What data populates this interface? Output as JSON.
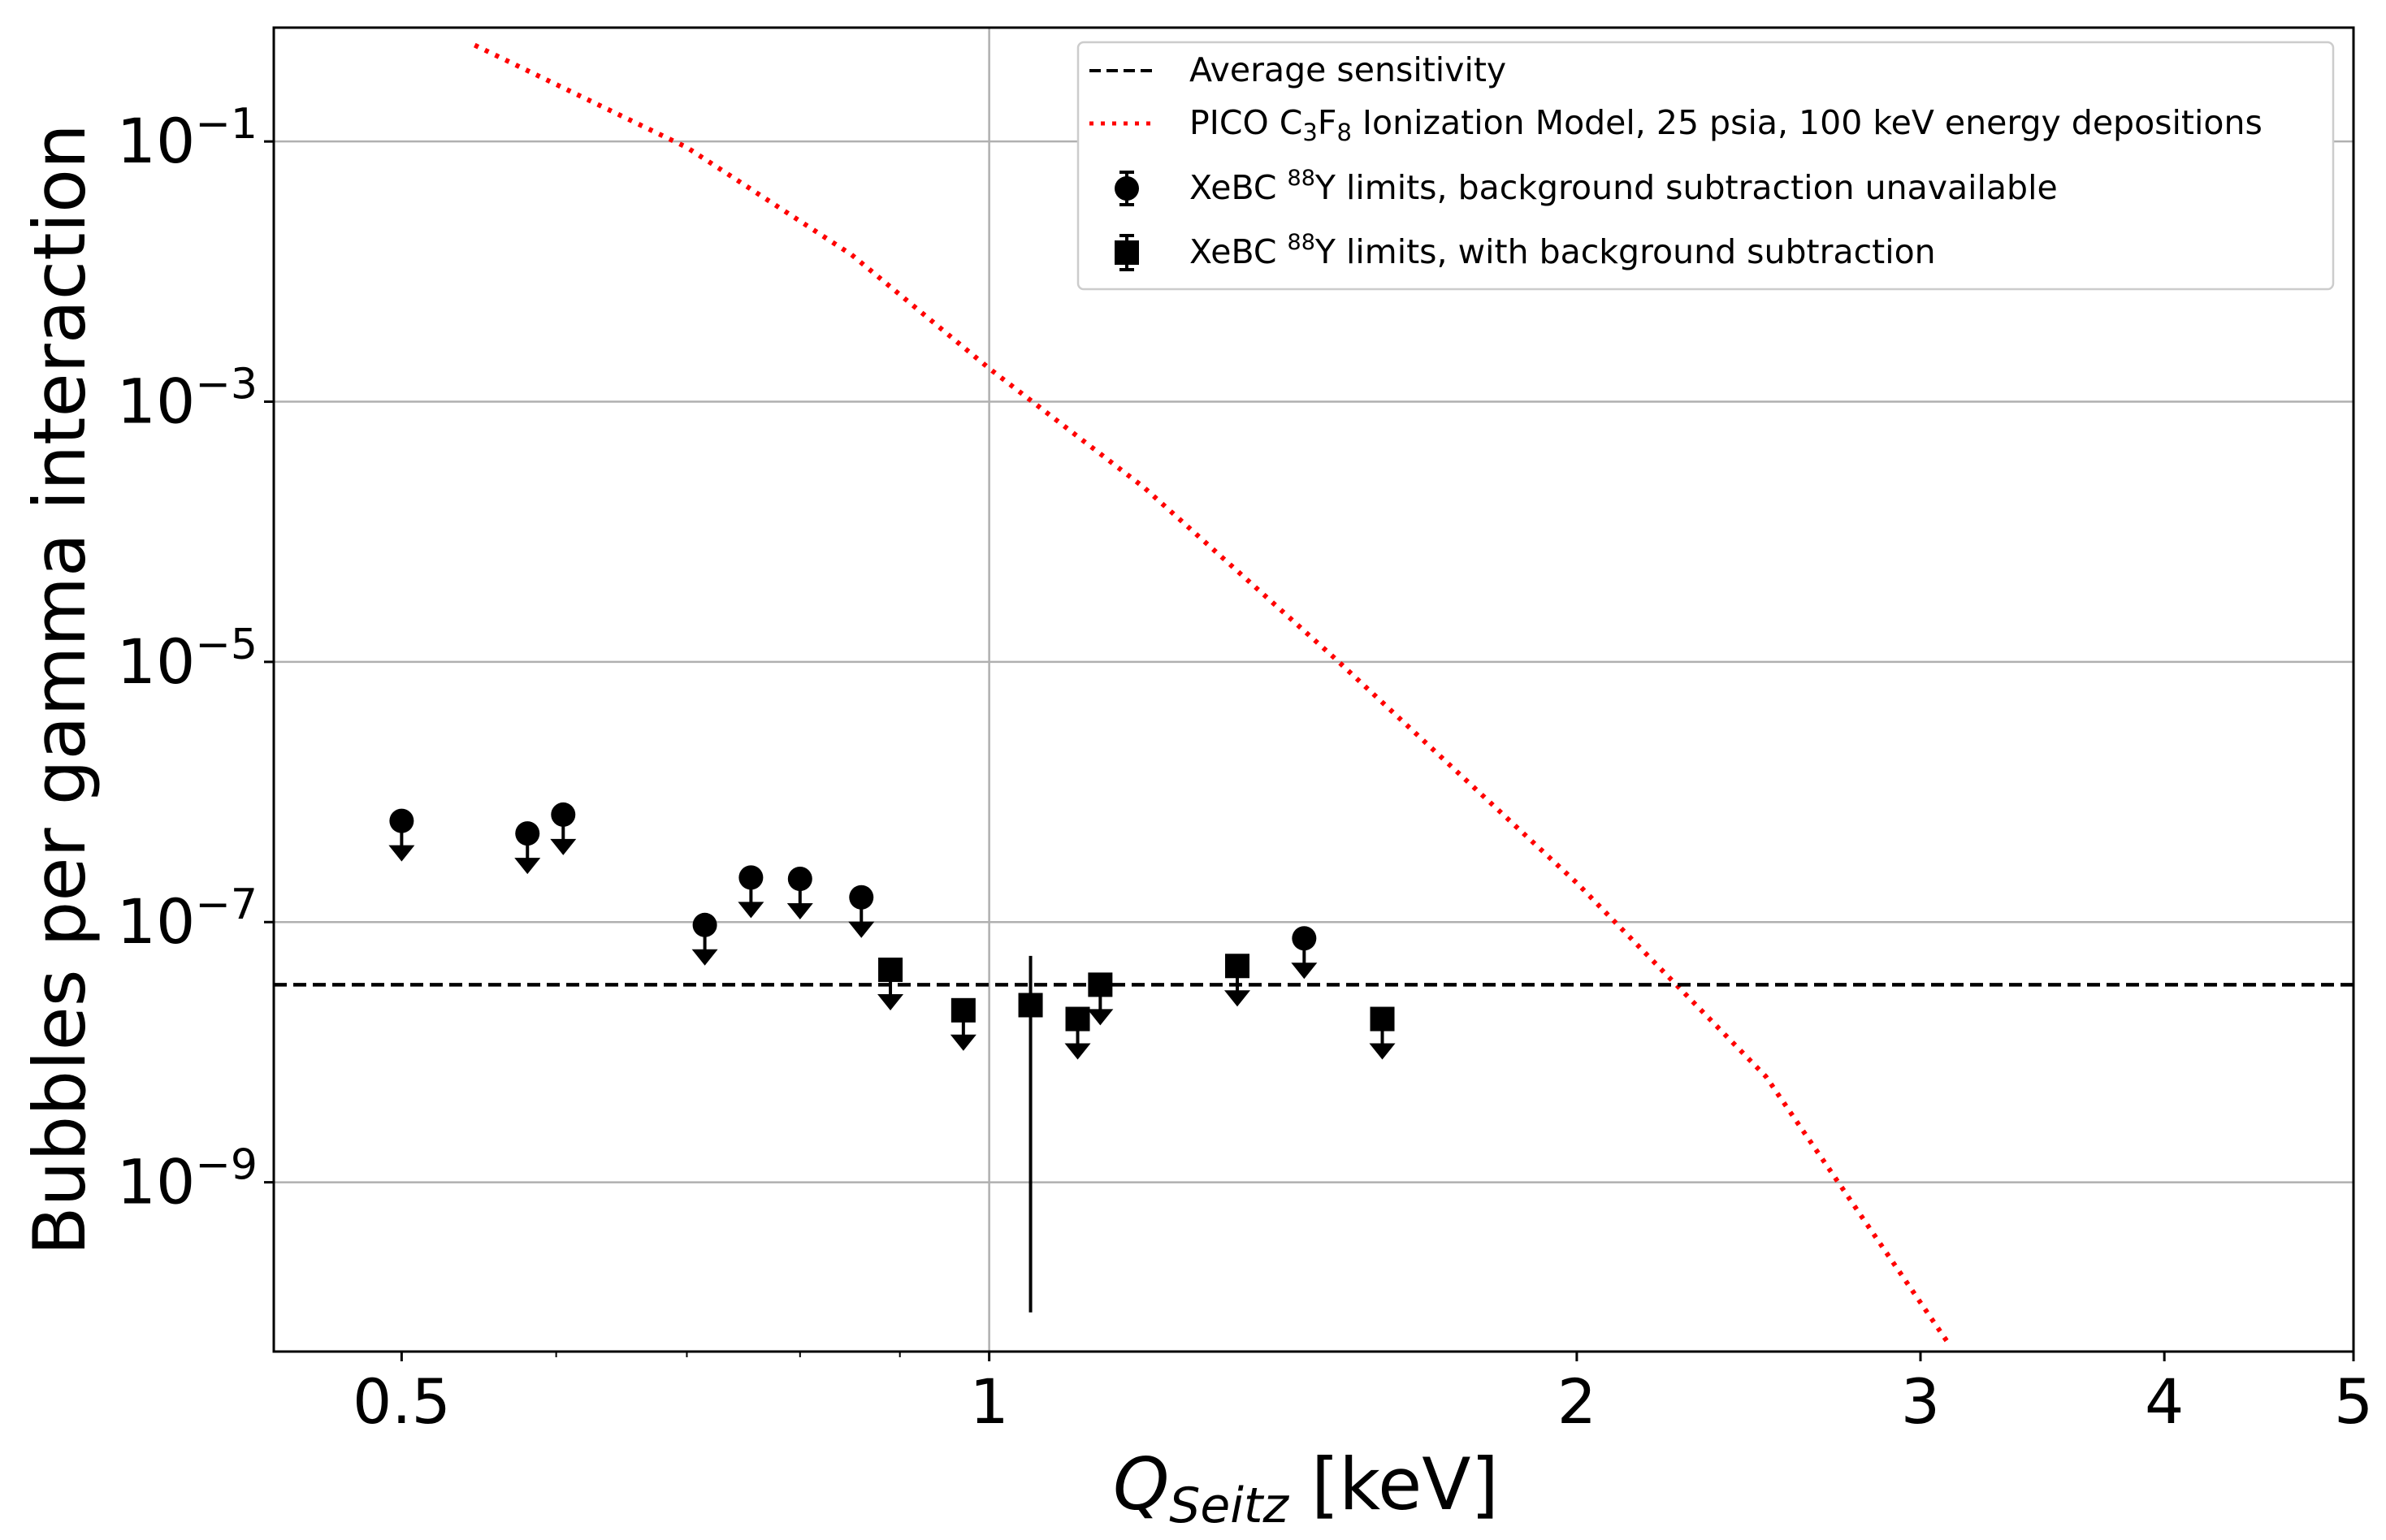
{
  "chart_data": {
    "type": "scatter",
    "xscale": "log",
    "yscale": "log",
    "xlim": [
      0.43,
      5.0
    ],
    "ylim": [
      5e-11,
      0.75
    ],
    "grid": true,
    "xlabel": {
      "main": "Q",
      "sub": "Seitz",
      "unit": " [keV]"
    },
    "ylabel": "Bubbles per gamma interaction",
    "xticks": [
      {
        "value": 0.5,
        "label": "0.5"
      },
      {
        "value": 1,
        "label": "1"
      },
      {
        "value": 2,
        "label": "2"
      },
      {
        "value": 3,
        "label": "3"
      },
      {
        "value": 4,
        "label": "4"
      },
      {
        "value": 5,
        "label": "5"
      }
    ],
    "yticks": [
      {
        "value": 0.1,
        "base": "10",
        "exp": "−1"
      },
      {
        "value": 0.001,
        "base": "10",
        "exp": "−3"
      },
      {
        "value": 1e-05,
        "base": "10",
        "exp": "−5"
      },
      {
        "value": 1e-07,
        "base": "10",
        "exp": "−7"
      },
      {
        "value": 1e-09,
        "base": "10",
        "exp": "−9"
      }
    ],
    "legend_position": "top-right",
    "legend": [
      {
        "key": "avg",
        "label": "Average sensitivity"
      },
      {
        "key": "pico",
        "parts": [
          "PICO C",
          "3",
          "F",
          "8",
          " Ionization Model, 25 psia, 100 keV energy depositions"
        ]
      },
      {
        "key": "circles",
        "parts": [
          "XeBC ",
          "88",
          "Y limits, background subtraction unavailable"
        ]
      },
      {
        "key": "squares",
        "parts": [
          "XeBC ",
          "88",
          "Y limits, with background subtraction"
        ]
      }
    ],
    "average_sensitivity": 3.3e-08,
    "pico_model": {
      "color": "#ff0000",
      "x": [
        0.545,
        0.7,
        0.85,
        1.0,
        1.2,
        1.5,
        2.0,
        2.5,
        3.1
      ],
      "y": [
        0.55,
        0.09,
        0.0135,
        0.0018,
        0.00022,
        1.1e-05,
        2e-07,
        6.5e-09,
        5.8e-11
      ]
    },
    "series": [
      {
        "name": "XeBC 88Y limits, background subtraction unavailable",
        "marker": "circle",
        "x": [
          0.5,
          0.58,
          0.605,
          0.715,
          0.755,
          0.8,
          0.86,
          1.45
        ],
        "y": [
          6e-07,
          4.8e-07,
          6.7e-07,
          9.5e-08,
          2.2e-07,
          2.15e-07,
          1.55e-07,
          7.5e-08
        ]
      },
      {
        "name": "XeBC 88Y limits, with background subtraction",
        "marker": "square",
        "x": [
          0.89,
          0.97,
          1.11,
          1.14,
          1.34,
          1.59
        ],
        "y": [
          4.3e-08,
          2.1e-08,
          1.8e-08,
          3.3e-08,
          4.6e-08,
          1.8e-08
        ]
      }
    ],
    "measured_point": {
      "x": 1.05,
      "y": 2.3e-08,
      "err_low": 1e-10,
      "err_high": 5.5e-08
    }
  }
}
